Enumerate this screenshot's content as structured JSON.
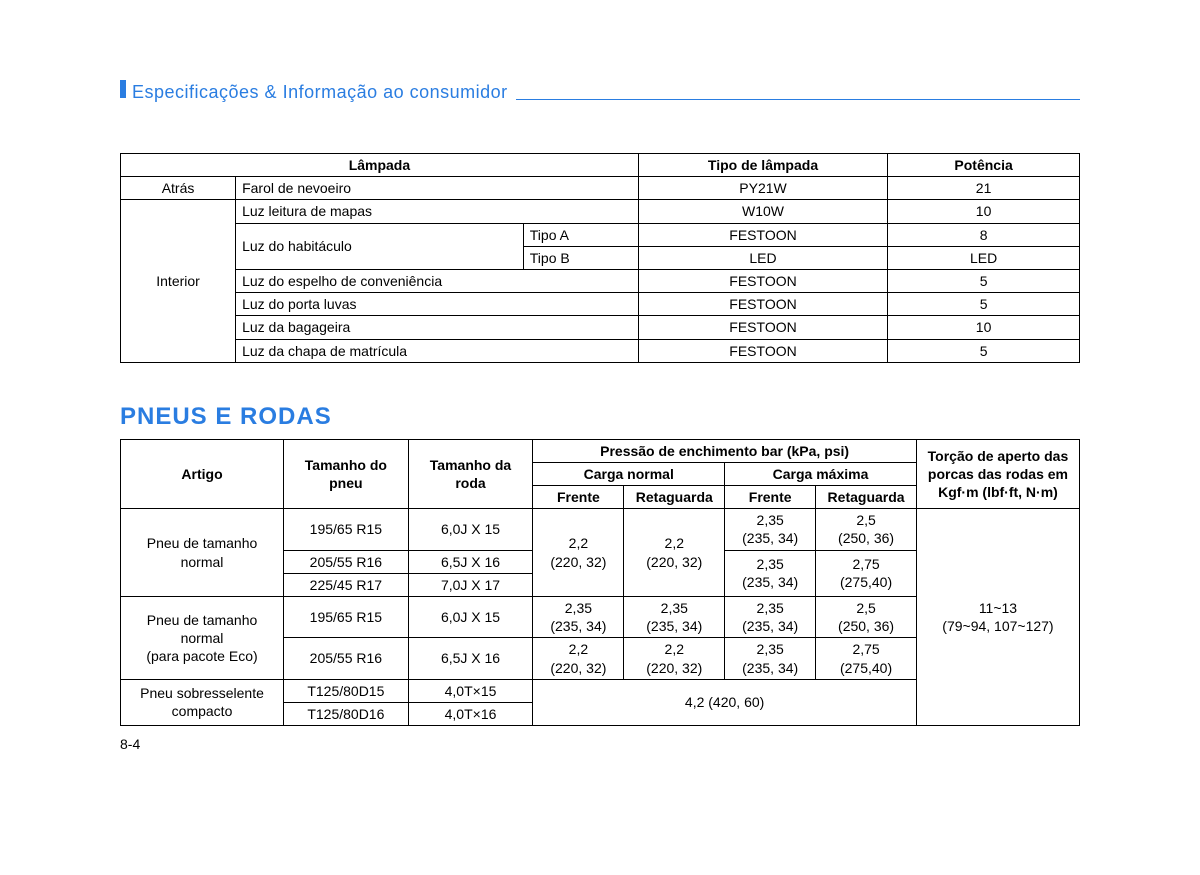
{
  "header": "Especificações & Informação ao consumidor",
  "table1": {
    "headers": {
      "lampada": "Lâmpada",
      "tipo": "Tipo de lâmpada",
      "potencia": "Potência"
    },
    "rows": [
      {
        "loc": "Atrás",
        "desc": "Farol de nevoeiro",
        "tipo": "PY21W",
        "pot": "21"
      },
      {
        "desc": "Luz leitura de mapas",
        "tipo": "W10W",
        "pot": "10"
      },
      {
        "desc": "Luz do habitáculo",
        "sub": "Tipo A",
        "tipo": "FESTOON",
        "pot": "8"
      },
      {
        "sub": "Tipo B",
        "tipo": "LED",
        "pot": "LED"
      },
      {
        "desc": "Luz do espelho de conveniência",
        "tipo": "FESTOON",
        "pot": "5"
      },
      {
        "desc": "Luz do porta luvas",
        "tipo": "FESTOON",
        "pot": "5"
      },
      {
        "desc": "Luz da bagageira",
        "tipo": "FESTOON",
        "pot": "10"
      },
      {
        "desc": "Luz da chapa de matrícula",
        "tipo": "FESTOON",
        "pot": "5"
      }
    ],
    "interior": "Interior"
  },
  "section2_title": "PNEUS E RODAS",
  "table2": {
    "headers": {
      "artigo": "Artigo",
      "tamanho_pneu": "Tamanho do pneu",
      "tamanho_roda": "Tamanho da roda",
      "pressao": "Pressão de enchimento bar (kPa, psi)",
      "carga_normal": "Carga normal",
      "carga_maxima": "Carga máxima",
      "frente": "Frente",
      "retaguarda": "Retaguarda",
      "torcao": "Torção de aperto das porcas das rodas em Kgf·m (lbf·ft, N·m)"
    },
    "artigo1": "Pneu de tamanho normal",
    "artigo2a": "Pneu de tamanho normal",
    "artigo2b": "(para pacote Eco)",
    "artigo3": "Pneu sobresselente compacto",
    "r1": {
      "pneu": "195/65 R15",
      "roda": "6,0J X 15"
    },
    "r2": {
      "pneu": "205/55 R16",
      "roda": "6,5J X 16"
    },
    "r3": {
      "pneu": "225/45 R17",
      "roda": "7,0J X 17"
    },
    "r4": {
      "pneu": "195/65 R15",
      "roda": "6,0J X 15"
    },
    "r5": {
      "pneu": "205/55 R16",
      "roda": "6,5J X 16"
    },
    "r6": {
      "pneu": "T125/80D15",
      "roda": "4,0T×15"
    },
    "r7": {
      "pneu": "T125/80D16",
      "roda": "4,0T×16"
    },
    "pn_f": "2,2\n(220, 32)",
    "pn_r": "2,2\n(220, 32)",
    "pm_f1": "2,35\n(235, 34)",
    "pm_r1": "2,5\n(250, 36)",
    "pm_f2": "2,35\n(235, 34)",
    "pm_r2": "2,75\n(275,40)",
    "eco1_f": "2,35\n(235, 34)",
    "eco1_r": "2,35\n(235, 34)",
    "eco1_mf": "2,35\n(235, 34)",
    "eco1_mr": "2,5\n(250, 36)",
    "eco2_f": "2,2\n(220, 32)",
    "eco2_r": "2,2\n(220, 32)",
    "eco2_mf": "2,35\n(235, 34)",
    "eco2_mr": "2,75\n(275,40)",
    "spare": "4,2 (420, 60)",
    "torcao_val": "11~13\n(79~94, 107~127)"
  },
  "page_num": "8-4",
  "colors": {
    "accent": "#2a7de1",
    "border": "#000000",
    "bg": "#ffffff"
  }
}
